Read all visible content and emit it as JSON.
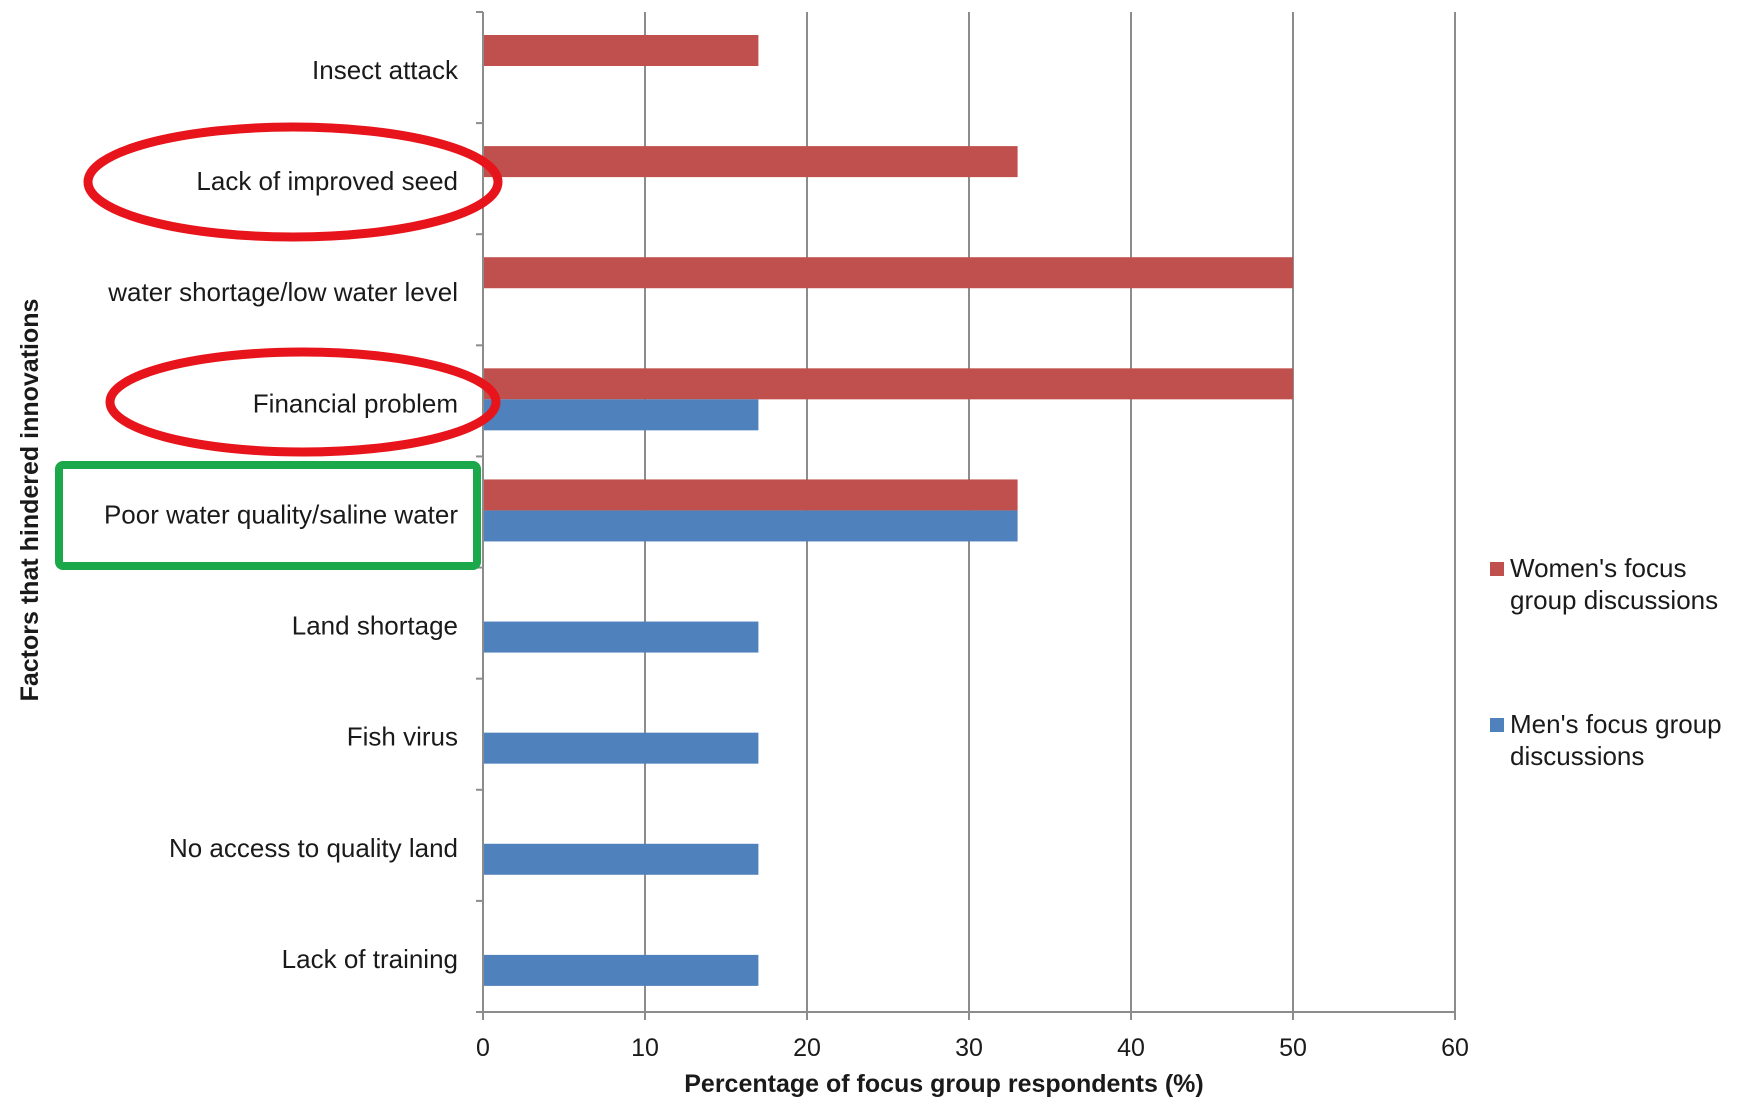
{
  "chart_data": {
    "type": "bar",
    "orientation": "horizontal",
    "categories": [
      "Insect attack",
      "Lack of improved seed",
      "water shortage/low water level",
      "Financial problem",
      "Poor water quality/saline water",
      "Land shortage",
      "Fish virus",
      "No access to quality land",
      "Lack of training"
    ],
    "series": [
      {
        "name": "Women's focus group discussions",
        "color": "#c0504d",
        "values": [
          17,
          33,
          50,
          50,
          33,
          0,
          0,
          0,
          0
        ]
      },
      {
        "name": "Men's focus group discussions",
        "color": "#4f81bd",
        "values": [
          0,
          0,
          0,
          17,
          33,
          17,
          17,
          17,
          17
        ]
      }
    ],
    "xlabel": "Percentage of focus group respondents (%)",
    "ylabel": "Factors that hindered innovations",
    "xlim": [
      0,
      60
    ],
    "xticks": [
      0,
      10,
      20,
      30,
      40,
      50,
      60
    ],
    "grid": "vertical",
    "legend": [
      {
        "lines": [
          "Women's focus",
          "group discussions"
        ],
        "color": "#c0504d"
      },
      {
        "lines": [
          "Men's focus group",
          "discussions"
        ],
        "color": "#4f81bd"
      }
    ],
    "legend_position": "right",
    "highlights": [
      {
        "category": "Lack of improved seed",
        "shape": "ellipse",
        "color": "#e8141b"
      },
      {
        "category": "Financial problem",
        "shape": "ellipse",
        "color": "#e8141b"
      },
      {
        "category": "Poor water quality/saline water",
        "shape": "rectangle",
        "color": "#1aa84a"
      }
    ]
  }
}
